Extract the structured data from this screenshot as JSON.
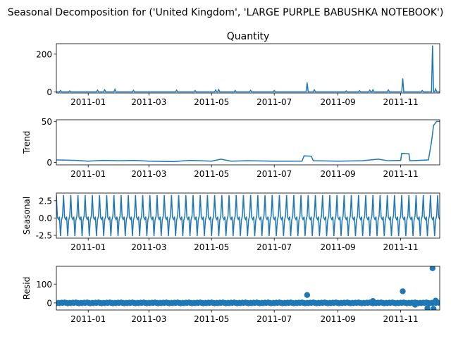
{
  "suptitle": "Seasonal Decomposition for ('United Kingdom', 'LARGE PURPLE BABUSHKA NOTEBOOK')",
  "x_tick_labels": [
    "2011-01",
    "2011-03",
    "2011-05",
    "2011-07",
    "2011-09",
    "2011-11"
  ],
  "x_tick_dates": [
    "2011-01-01",
    "2011-03-01",
    "2011-05-01",
    "2011-07-01",
    "2011-09-01",
    "2011-11-01"
  ],
  "x_range": [
    "2010-12-01",
    "2011-12-09"
  ],
  "line_color": "#1f77b4",
  "chart_data": [
    {
      "type": "line",
      "title": "Quantity",
      "ylabel": "",
      "ylim": [
        -5,
        255
      ],
      "yticks": [
        0,
        200
      ],
      "ytick_labels": [
        "0",
        "200"
      ],
      "baseline": 1,
      "spikes": [
        {
          "x": "2010-12-05",
          "y": 8
        },
        {
          "x": "2010-12-14",
          "y": 6
        },
        {
          "x": "2011-01-10",
          "y": 10
        },
        {
          "x": "2011-01-17",
          "y": 12
        },
        {
          "x": "2011-01-27",
          "y": 14
        },
        {
          "x": "2011-02-14",
          "y": 9
        },
        {
          "x": "2011-03-28",
          "y": 10
        },
        {
          "x": "2011-04-15",
          "y": 8
        },
        {
          "x": "2011-05-05",
          "y": 11
        },
        {
          "x": "2011-05-08",
          "y": 13
        },
        {
          "x": "2011-05-24",
          "y": 8
        },
        {
          "x": "2011-06-08",
          "y": 9
        },
        {
          "x": "2011-07-01",
          "y": 8
        },
        {
          "x": "2011-08-02",
          "y": 50
        },
        {
          "x": "2011-08-09",
          "y": 12
        },
        {
          "x": "2011-09-09",
          "y": 6
        },
        {
          "x": "2011-09-22",
          "y": 7
        },
        {
          "x": "2011-10-02",
          "y": 10
        },
        {
          "x": "2011-10-05",
          "y": 12
        },
        {
          "x": "2011-10-20",
          "y": 11
        },
        {
          "x": "2011-11-03",
          "y": 72
        },
        {
          "x": "2011-11-22",
          "y": 8
        },
        {
          "x": "2011-12-02",
          "y": 245
        },
        {
          "x": "2011-12-05",
          "y": 16
        }
      ]
    },
    {
      "type": "line",
      "title": "",
      "ylabel": "Trend",
      "ylim": [
        -3,
        52
      ],
      "yticks": [
        0,
        50
      ],
      "ytick_labels": [
        "0",
        "50"
      ],
      "points": [
        {
          "x": "2010-12-01",
          "y": 3
        },
        {
          "x": "2010-12-20",
          "y": 2.5
        },
        {
          "x": "2011-01-01",
          "y": 1.5
        },
        {
          "x": "2011-01-15",
          "y": 2.5
        },
        {
          "x": "2011-02-01",
          "y": 2
        },
        {
          "x": "2011-02-15",
          "y": 2.5
        },
        {
          "x": "2011-03-01",
          "y": 1.5
        },
        {
          "x": "2011-03-25",
          "y": 1
        },
        {
          "x": "2011-04-10",
          "y": 2.5
        },
        {
          "x": "2011-05-01",
          "y": 1.5
        },
        {
          "x": "2011-05-10",
          "y": 4
        },
        {
          "x": "2011-05-20",
          "y": 1.5
        },
        {
          "x": "2011-06-05",
          "y": 2
        },
        {
          "x": "2011-07-01",
          "y": 1.5
        },
        {
          "x": "2011-07-28",
          "y": 1.5
        },
        {
          "x": "2011-07-30",
          "y": 8
        },
        {
          "x": "2011-08-06",
          "y": 7.5
        },
        {
          "x": "2011-08-08",
          "y": 2
        },
        {
          "x": "2011-09-01",
          "y": 1.5
        },
        {
          "x": "2011-09-25",
          "y": 2
        },
        {
          "x": "2011-10-10",
          "y": 4
        },
        {
          "x": "2011-10-20",
          "y": 2
        },
        {
          "x": "2011-11-01",
          "y": 2.5
        },
        {
          "x": "2011-11-02",
          "y": 11
        },
        {
          "x": "2011-11-09",
          "y": 10.5
        },
        {
          "x": "2011-11-10",
          "y": 2
        },
        {
          "x": "2011-11-28",
          "y": 3
        },
        {
          "x": "2011-12-01",
          "y": 25
        },
        {
          "x": "2011-12-03",
          "y": 45
        },
        {
          "x": "2011-12-06",
          "y": 50
        },
        {
          "x": "2011-12-09",
          "y": 50
        }
      ]
    },
    {
      "type": "line",
      "title": "",
      "ylabel": "Seasonal",
      "ylim": [
        -2.9,
        3.6
      ],
      "yticks": [
        2.5,
        0.0,
        -2.5
      ],
      "ytick_labels": [
        "2.5",
        "0.0",
        "-2.5"
      ],
      "period_days": 7,
      "weekly_pattern": [
        3.3,
        0.1,
        -0.2,
        0.2,
        -2.6,
        -0.3,
        0.3
      ]
    },
    {
      "type": "scatter",
      "title": "",
      "ylabel": "Resid",
      "ylim": [
        -38,
        195
      ],
      "yticks": [
        0,
        100
      ],
      "ytick_labels": [
        "0",
        "100"
      ],
      "outliers": [
        {
          "x": "2011-08-02",
          "y": 42
        },
        {
          "x": "2011-11-03",
          "y": 62
        },
        {
          "x": "2011-10-05",
          "y": 10
        },
        {
          "x": "2011-12-02",
          "y": 185
        },
        {
          "x": "2011-12-05",
          "y": 12
        },
        {
          "x": "2011-12-03",
          "y": -32
        },
        {
          "x": "2011-11-27",
          "y": -28
        },
        {
          "x": "2011-11-15",
          "y": -10
        }
      ]
    }
  ]
}
